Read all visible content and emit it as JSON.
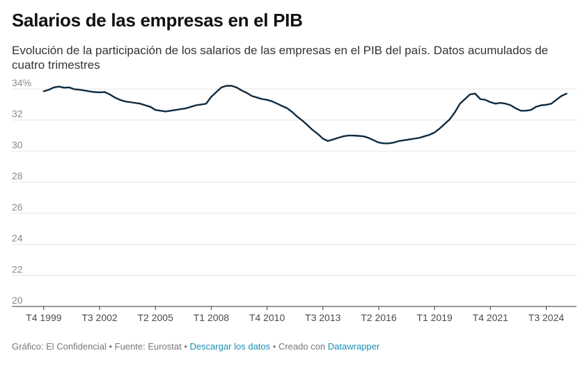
{
  "title": "Salarios de las empresas en el PIB",
  "subtitle": "Evolución de la participación de los salarios de las empresas en el PIB del país. Datos acumulados de cuatro trimestres",
  "footer": {
    "grafico": "Gráfico: El Confidencial",
    "fuente": "Fuente: Eurostat",
    "descargar": "Descargar los datos",
    "creado": "Creado con",
    "datawrapper": "Datawrapper",
    "sep": " • "
  },
  "colors": {
    "line": "#0f2a3f",
    "grid": "#e5e5e5",
    "axis": "#333333",
    "link": "#1b8fb5"
  },
  "chart_data": {
    "type": "line",
    "title": "Salarios de las empresas en el PIB",
    "xlabel": "",
    "ylabel": "",
    "ylim": [
      20,
      34
    ],
    "grid": true,
    "y_ticks": [
      20,
      22,
      24,
      26,
      28,
      30,
      32,
      34
    ],
    "y_tick_labels": [
      "20",
      "22",
      "24",
      "26",
      "28",
      "30",
      "32",
      "34%"
    ],
    "x_tick_labels": [
      "T4 1999",
      "T3 2002",
      "T2 2005",
      "T1 2008",
      "T4 2010",
      "T3 2013",
      "T2 2016",
      "T1 2019",
      "T4 2021",
      "T3 2024"
    ],
    "x_tick_positions": [
      1999.75,
      2002.5,
      2005.25,
      2008.0,
      2010.75,
      2013.5,
      2016.25,
      2019.0,
      2021.75,
      2024.5
    ],
    "series": [
      {
        "x": [
          1999.75,
          2000.0,
          2000.25,
          2000.5,
          2000.75,
          2001.0,
          2001.25,
          2001.5,
          2001.75,
          2002.0,
          2002.25,
          2002.5,
          2002.75,
          2003.0,
          2003.25,
          2003.5,
          2003.75,
          2004.0,
          2004.25,
          2004.5,
          2004.75,
          2005.0,
          2005.25,
          2005.5,
          2005.75,
          2006.0,
          2006.25,
          2006.5,
          2006.75,
          2007.0,
          2007.25,
          2007.5,
          2007.75,
          2008.0,
          2008.25,
          2008.5,
          2008.75,
          2009.0,
          2009.25,
          2009.5,
          2009.75,
          2010.0,
          2010.25,
          2010.5,
          2010.75,
          2011.0,
          2011.25,
          2011.5,
          2011.75,
          2012.0,
          2012.25,
          2012.5,
          2012.75,
          2013.0,
          2013.25,
          2013.5,
          2013.75,
          2014.0,
          2014.25,
          2014.5,
          2014.75,
          2015.0,
          2015.25,
          2015.5,
          2015.75,
          2016.0,
          2016.25,
          2016.5,
          2016.75,
          2017.0,
          2017.25,
          2017.5,
          2017.75,
          2018.0,
          2018.25,
          2018.5,
          2018.75,
          2019.0,
          2019.25,
          2019.5,
          2019.75,
          2020.0,
          2020.25,
          2020.5,
          2020.75,
          2021.0,
          2021.25,
          2021.5,
          2021.75,
          2022.0,
          2022.25,
          2022.5,
          2022.75,
          2023.0,
          2023.25,
          2023.5,
          2023.75,
          2024.0,
          2024.25,
          2024.5,
          2024.75,
          2025.0,
          2025.25,
          2025.5
        ],
        "values": [
          33.85,
          33.95,
          34.1,
          34.15,
          34.08,
          34.1,
          33.98,
          33.95,
          33.9,
          33.85,
          33.8,
          33.78,
          33.8,
          33.65,
          33.45,
          33.3,
          33.2,
          33.15,
          33.1,
          33.05,
          32.95,
          32.85,
          32.65,
          32.6,
          32.55,
          32.6,
          32.65,
          32.7,
          32.75,
          32.85,
          32.95,
          33.0,
          33.05,
          33.5,
          33.8,
          34.1,
          34.2,
          34.2,
          34.1,
          33.9,
          33.75,
          33.55,
          33.45,
          33.35,
          33.3,
          33.2,
          33.05,
          32.9,
          32.75,
          32.5,
          32.2,
          31.95,
          31.65,
          31.35,
          31.1,
          30.8,
          30.65,
          30.75,
          30.85,
          30.95,
          31.0,
          31.0,
          30.98,
          30.95,
          30.85,
          30.7,
          30.55,
          30.5,
          30.5,
          30.55,
          30.65,
          30.7,
          30.75,
          30.8,
          30.85,
          30.95,
          31.05,
          31.2,
          31.45,
          31.75,
          32.05,
          32.5,
          33.05,
          33.35,
          33.65,
          33.7,
          33.35,
          33.3,
          33.15,
          33.05,
          33.1,
          33.05,
          32.95,
          32.75,
          32.6,
          32.6,
          32.65,
          32.85,
          32.95,
          32.98,
          33.05,
          33.3,
          33.55,
          33.7
        ]
      }
    ]
  }
}
